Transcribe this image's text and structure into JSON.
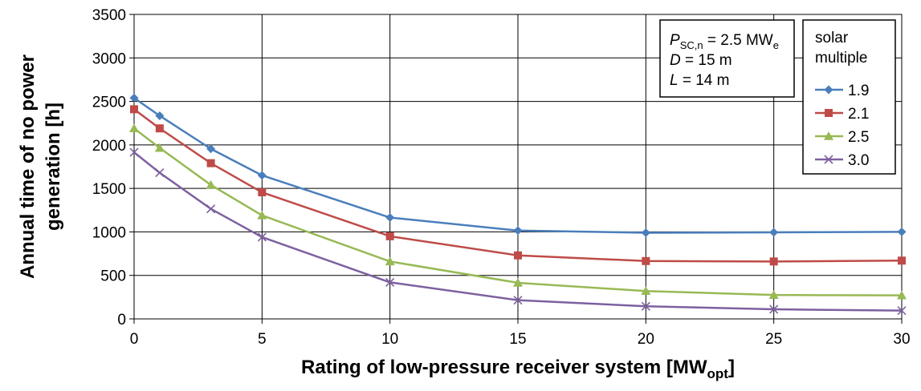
{
  "chart_data": {
    "type": "line",
    "x": [
      0,
      1,
      3,
      5,
      10,
      15,
      20,
      25,
      30
    ],
    "series": [
      {
        "name": "1.9",
        "color": "#4a7ebb",
        "marker": "diamond",
        "values": [
          2540,
          2335,
          1955,
          1650,
          1165,
          1015,
          990,
          995,
          1000
        ]
      },
      {
        "name": "2.1",
        "color": "#be4b48",
        "marker": "square",
        "values": [
          2410,
          2190,
          1790,
          1455,
          950,
          730,
          665,
          660,
          670
        ]
      },
      {
        "name": "2.5",
        "color": "#98b954",
        "marker": "triangle",
        "values": [
          2190,
          1965,
          1540,
          1190,
          660,
          415,
          320,
          275,
          270
        ]
      },
      {
        "name": "3.0",
        "color": "#7d60a0",
        "marker": "x",
        "values": [
          1915,
          1680,
          1265,
          940,
          420,
          215,
          145,
          110,
          95
        ]
      }
    ],
    "xticks": [
      "0",
      "5",
      "10",
      "15",
      "20",
      "25",
      "30"
    ],
    "yticks": [
      "0",
      "500",
      "1000",
      "1500",
      "2000",
      "2500",
      "3000",
      "3500"
    ],
    "xlim": [
      0,
      30
    ],
    "ylim": [
      0,
      3500
    ],
    "xlabel": {
      "main": "Rating of low-pressure receiver system [MW",
      "sub": "opt",
      "end": "]"
    },
    "ylabel": {
      "line1": "Annual time of no power",
      "line2": "generation [h]"
    },
    "grid": true,
    "annotation": {
      "line1": {
        "var": "P",
        "sub": "SC,n",
        "rest": " = 2.5 MW",
        "unit_sub": "e"
      },
      "line2": {
        "var": "D",
        "rest": " = 15 m"
      },
      "line3": {
        "var": "L",
        "rest": " = 14 m"
      }
    },
    "legend": {
      "title_line1": "solar",
      "title_line2": "multiple",
      "position": "right"
    }
  }
}
